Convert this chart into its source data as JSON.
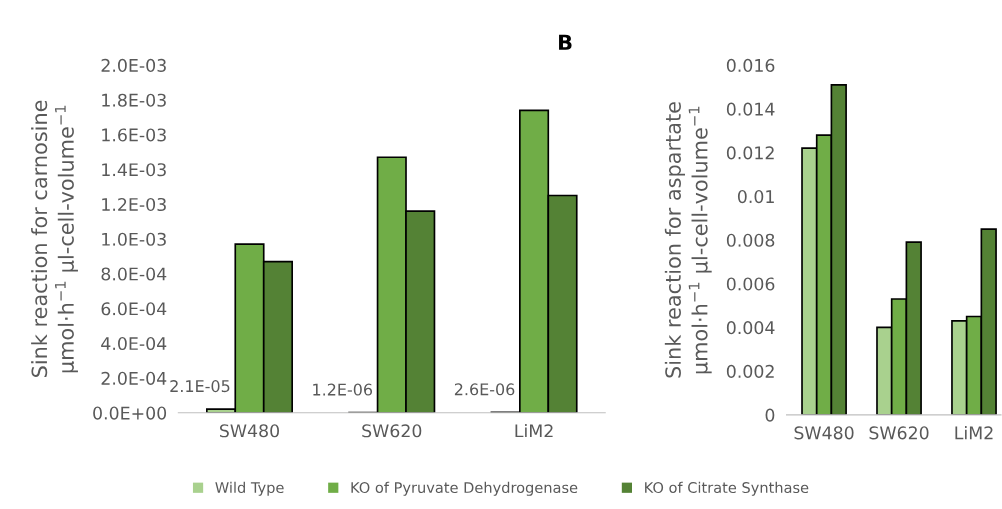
{
  "chart_data": [
    {
      "type": "bar",
      "title": "B",
      "categories": [
        "SW480",
        "SW620",
        "LiM2"
      ],
      "ylabel": "Sink reaction for carnosine\nµmol·h$^{−1}$ µl-cell-volume$^{−1}$",
      "ylim": [
        0,
        0.002
      ],
      "yticks": [
        {
          "value": 0,
          "label": "0.0E+00"
        },
        {
          "value": 0.0002,
          "label": "2.0E-04"
        },
        {
          "value": 0.0004,
          "label": "4.0E-04"
        },
        {
          "value": 0.0006,
          "label": "6.0E-04"
        },
        {
          "value": 0.0008,
          "label": "8.0E-04"
        },
        {
          "value": 0.001,
          "label": "1.0E-03"
        },
        {
          "value": 0.0012,
          "label": "1.2E-03"
        },
        {
          "value": 0.0014,
          "label": "1.4E-03"
        },
        {
          "value": 0.0016,
          "label": "1.6E-03"
        },
        {
          "value": 0.0018,
          "label": "1.8E-03"
        },
        {
          "value": 0.002,
          "label": "2.0E-03"
        }
      ],
      "grid": false,
      "legend": "bottom",
      "series": [
        {
          "name": "Wild Type",
          "color": "#a9d18e",
          "values": [
            2.1e-05,
            1.2e-06,
            2.6e-06
          ],
          "value_labels": [
            "2.1E-05",
            "1.2E-06",
            "2.6E-06"
          ]
        },
        {
          "name": "KO of Pyruvate Dehydrogenase",
          "color": "#70ad47",
          "values": [
            0.00097,
            0.00147,
            0.00174
          ]
        },
        {
          "name": "KO of Citrate Synthase",
          "color": "#548235",
          "values": [
            0.00087,
            0.00116,
            0.00125
          ]
        }
      ]
    },
    {
      "type": "bar",
      "categories": [
        "SW480",
        "SW620",
        "LiM2"
      ],
      "ylabel": "Sink reaction for aspartate\nµmol·h$^{−1}$ µl-cell-volume$^{−1}$",
      "ylim": [
        0,
        0.016
      ],
      "yticks": [
        0,
        0.002,
        0.004,
        0.006,
        0.008,
        0.01,
        0.012,
        0.014,
        0.016
      ],
      "grid": false,
      "series": [
        {
          "color": "#a9d18e",
          "values": [
            0.0122,
            0.004,
            0.0043
          ]
        },
        {
          "color": "#70ad47",
          "values": [
            0.0128,
            0.0053,
            0.0045
          ]
        },
        {
          "color": "#548235",
          "values": [
            0.0151,
            0.0079,
            0.0085
          ]
        }
      ]
    }
  ]
}
